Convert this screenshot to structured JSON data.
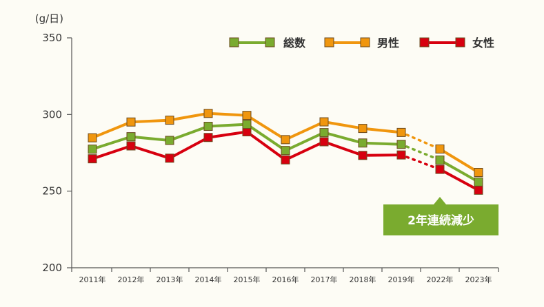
{
  "chart_data": {
    "type": "line",
    "unit_label": "(g/日)",
    "categories": [
      "2011年",
      "2012年",
      "2013年",
      "2014年",
      "2015年",
      "2016年",
      "2017年",
      "2018年",
      "2019年",
      "2022年",
      "2023年"
    ],
    "gap_after_index": 8,
    "ylim": [
      200,
      350
    ],
    "yticks": [
      "350",
      "300",
      "250",
      "200"
    ],
    "series": [
      {
        "name": "総数",
        "color": "#7aab2f",
        "values": [
          277.4,
          285.5,
          283.1,
          292.3,
          293.6,
          276.5,
          288.2,
          281.4,
          280.5,
          270.3,
          256.0
        ]
      },
      {
        "name": "男性",
        "color": "#f0960e",
        "values": [
          284.8,
          295.1,
          296.3,
          300.7,
          299.4,
          283.6,
          295.2,
          290.9,
          288.3,
          277.5,
          262.2
        ]
      },
      {
        "name": "女性",
        "color": "#d7000f",
        "values": [
          271.1,
          279.5,
          271.5,
          285.0,
          288.7,
          270.4,
          282.2,
          273.3,
          273.6,
          264.2,
          250.6
        ]
      }
    ],
    "annotation": "2年連続減少"
  }
}
